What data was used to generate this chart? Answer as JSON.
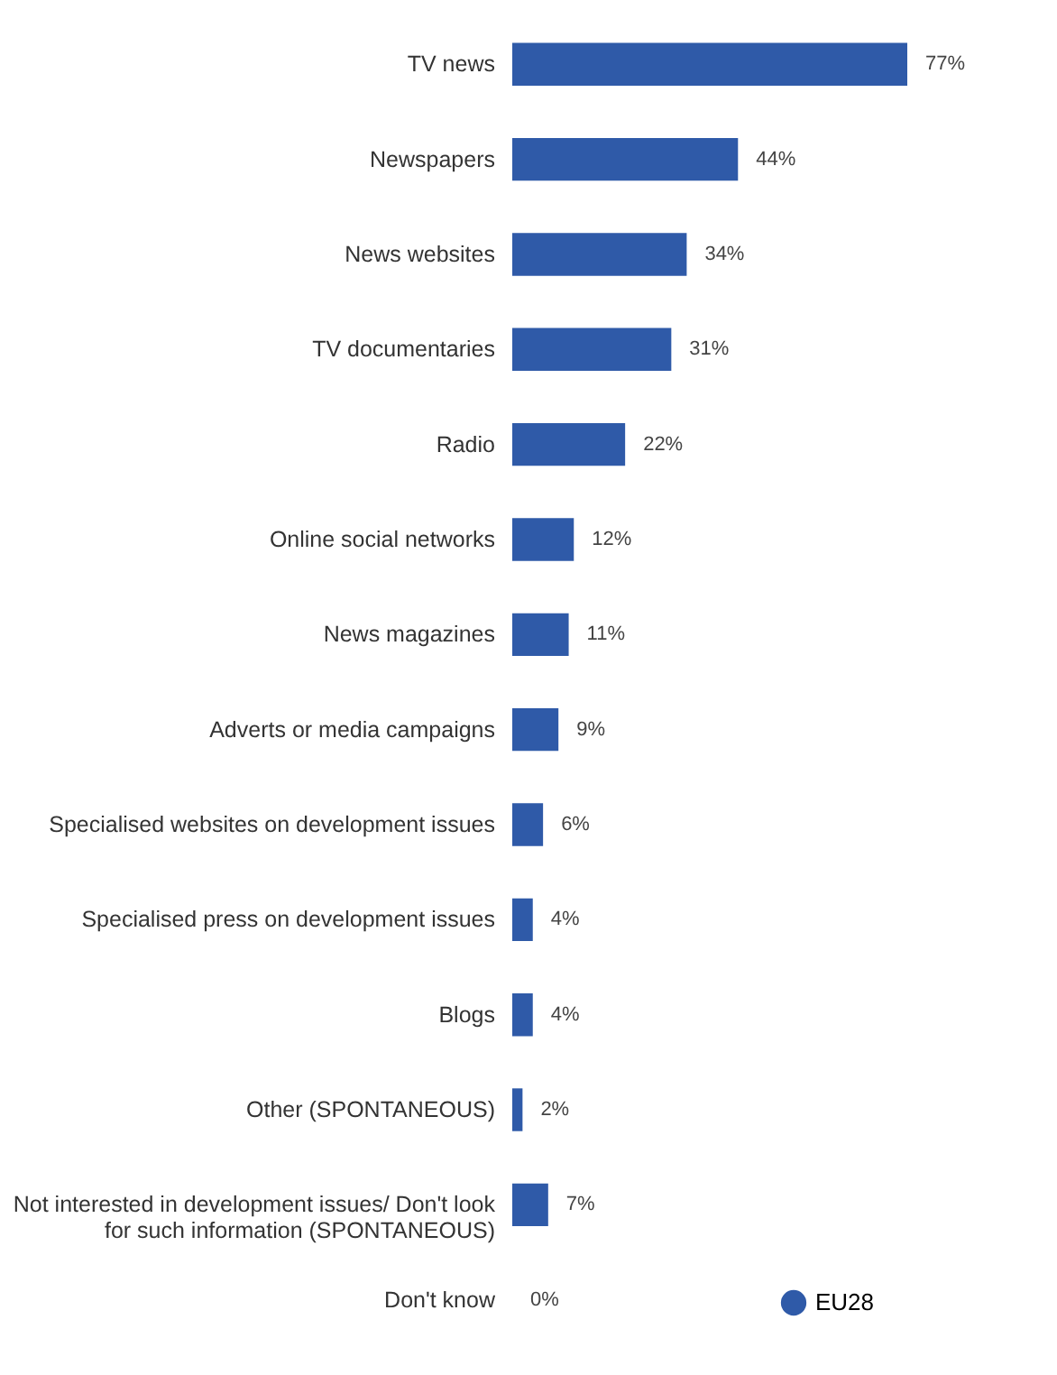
{
  "chart_data": {
    "type": "bar",
    "orientation": "horizontal",
    "categories": [
      "TV news",
      "Newspapers",
      "News websites",
      "TV documentaries",
      "Radio",
      "Online social networks",
      "News magazines",
      "Adverts or media campaigns",
      "Specialised websites on development issues",
      "Specialised press on development issues",
      "Blogs",
      "Other (SPONTANEOUS)",
      "Not interested in development issues/ Don't look for such information (SPONTANEOUS)",
      "Don't know"
    ],
    "series": [
      {
        "name": "EU28",
        "color": "#2f5aa8",
        "values": [
          77,
          44,
          34,
          31,
          22,
          12,
          11,
          9,
          6,
          4,
          4,
          2,
          7,
          0
        ],
        "value_labels": [
          "77%",
          "44%",
          "34%",
          "31%",
          "22%",
          "12%",
          "11%",
          "9%",
          "6%",
          "4%",
          "4%",
          "2%",
          "7%",
          "0%"
        ]
      }
    ],
    "legend": "bottom right"
  }
}
